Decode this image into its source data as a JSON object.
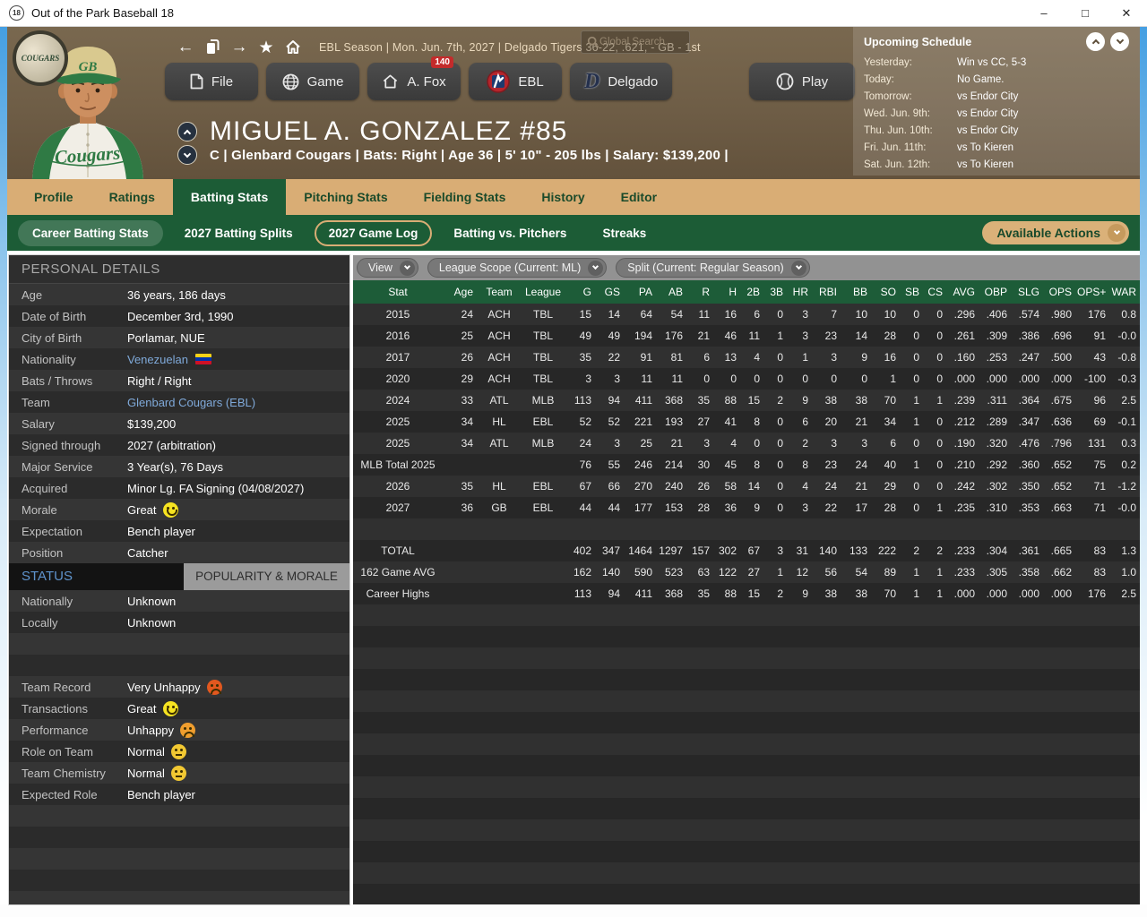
{
  "window": {
    "icon": "18",
    "title": "Out of the Park Baseball 18",
    "controls": {
      "minimize": "–",
      "maximize": "□",
      "close": "✕"
    }
  },
  "topbar": {
    "status_line": "EBL Season  |  Mon. Jun. 7th, 2027  |  Delgado Tigers  36-22, .621, - GB - 1st",
    "search_placeholder": "Global Search..."
  },
  "schedule": {
    "title": "Upcoming Schedule",
    "rows": [
      {
        "label": "Yesterday:",
        "value": "Win vs CC, 5-3"
      },
      {
        "label": "Today:",
        "value": "No Game."
      },
      {
        "label": "Tomorrow:",
        "value": "vs Endor City"
      },
      {
        "label": "Wed. Jun. 9th:",
        "value": "vs Endor City"
      },
      {
        "label": "Thu. Jun. 10th:",
        "value": "vs Endor City"
      },
      {
        "label": "Fri. Jun. 11th:",
        "value": "vs To Kieren"
      },
      {
        "label": "Sat. Jun. 12th:",
        "value": "vs To Kieren"
      }
    ]
  },
  "menu": {
    "file": "File",
    "game": "Game",
    "manager": "A. Fox",
    "manager_badge": "140",
    "league": "EBL",
    "team": "Delgado",
    "play": "Play"
  },
  "player": {
    "name": "MIGUEL A. GONZALEZ  #85",
    "info_line": "C | Glenbard Cougars  |  Bats: Right  |  Age 36  |  5' 10\" - 205 lbs  |  Salary: $139,200  |"
  },
  "tabs": {
    "items": [
      "Profile",
      "Ratings",
      "Batting Stats",
      "Pitching Stats",
      "Fielding Stats",
      "History",
      "Editor"
    ],
    "active": "Batting Stats"
  },
  "subtabs": {
    "items": [
      "Career Batting Stats",
      "2027 Batting Splits",
      "2027 Game Log",
      "Batting vs. Pitchers",
      "Streaks"
    ],
    "selected": "Career Batting Stats",
    "outlined": "2027 Game Log",
    "actions_label": "Available Actions"
  },
  "filters": {
    "view_label": "View",
    "league_scope": "League Scope  (Current: ML)",
    "split": "Split  (Current: Regular Season)"
  },
  "personal_details": {
    "title": "PERSONAL DETAILS",
    "rows": [
      {
        "label": "Age",
        "value": "36 years, 186 days"
      },
      {
        "label": "Date of Birth",
        "value": "December 3rd, 1990"
      },
      {
        "label": "City of Birth",
        "value": "Porlamar, NUE"
      },
      {
        "label": "Nationality",
        "value": "Venezuelan",
        "link": true,
        "flag": "venezuela-flag"
      },
      {
        "label": "Bats / Throws",
        "value": "Right / Right"
      },
      {
        "label": "Team",
        "value": "Glenbard Cougars (EBL)",
        "link": true
      },
      {
        "label": "Salary",
        "value": "$139,200"
      },
      {
        "label": "Signed through",
        "value": "2027 (arbitration)"
      },
      {
        "label": "Major Service",
        "value": "3 Year(s), 76 Days"
      },
      {
        "label": "Acquired",
        "value": "Minor Lg. FA Signing (04/08/2027)"
      },
      {
        "label": "Morale",
        "value": "Great",
        "emoji": "great"
      },
      {
        "label": "Expectation",
        "value": "Bench player"
      },
      {
        "label": "Position",
        "value": "Catcher"
      }
    ]
  },
  "status_panel": {
    "tab_status": "STATUS",
    "tab_popularity": "POPULARITY & MORALE",
    "rows": [
      {
        "label": "Nationally",
        "value": "Unknown"
      },
      {
        "label": "Locally",
        "value": "Unknown"
      },
      {
        "spacer": true
      },
      {
        "spacer": true
      },
      {
        "label": "Team Record",
        "value": "Very Unhappy",
        "emoji": "very-unhappy"
      },
      {
        "label": "Transactions",
        "value": "Great",
        "emoji": "great"
      },
      {
        "label": "Performance",
        "value": "Unhappy",
        "emoji": "unhappy"
      },
      {
        "label": "Role on Team",
        "value": "Normal",
        "emoji": "normal"
      },
      {
        "label": "Team Chemistry",
        "value": "Normal",
        "emoji": "normal"
      },
      {
        "label": "Expected Role",
        "value": "Bench player"
      }
    ]
  },
  "stats_table": {
    "columns": [
      "Stat",
      "Age",
      "Team",
      "League",
      "G",
      "GS",
      "PA",
      "AB",
      "R",
      "H",
      "2B",
      "3B",
      "HR",
      "RBI",
      "BB",
      "SO",
      "SB",
      "CS",
      "AVG",
      "OBP",
      "SLG",
      "OPS",
      "OPS+",
      "WAR"
    ],
    "rows": [
      [
        "2015",
        "24",
        "ACH",
        "TBL",
        "15",
        "14",
        "64",
        "54",
        "11",
        "16",
        "6",
        "0",
        "3",
        "7",
        "10",
        "10",
        "0",
        "0",
        ".296",
        ".406",
        ".574",
        ".980",
        "176",
        "0.8"
      ],
      [
        "2016",
        "25",
        "ACH",
        "TBL",
        "49",
        "49",
        "194",
        "176",
        "21",
        "46",
        "11",
        "1",
        "3",
        "23",
        "14",
        "28",
        "0",
        "0",
        ".261",
        ".309",
        ".386",
        ".696",
        "91",
        "-0.0"
      ],
      [
        "2017",
        "26",
        "ACH",
        "TBL",
        "35",
        "22",
        "91",
        "81",
        "6",
        "13",
        "4",
        "0",
        "1",
        "3",
        "9",
        "16",
        "0",
        "0",
        ".160",
        ".253",
        ".247",
        ".500",
        "43",
        "-0.8"
      ],
      [
        "2020",
        "29",
        "ACH",
        "TBL",
        "3",
        "3",
        "11",
        "11",
        "0",
        "0",
        "0",
        "0",
        "0",
        "0",
        "0",
        "1",
        "0",
        "0",
        ".000",
        ".000",
        ".000",
        ".000",
        "-100",
        "-0.3"
      ],
      [
        "2024",
        "33",
        "ATL",
        "MLB",
        "113",
        "94",
        "411",
        "368",
        "35",
        "88",
        "15",
        "2",
        "9",
        "38",
        "38",
        "70",
        "1",
        "1",
        ".239",
        ".311",
        ".364",
        ".675",
        "96",
        "2.5"
      ],
      [
        "2025",
        "34",
        "HL",
        "EBL",
        "52",
        "52",
        "221",
        "193",
        "27",
        "41",
        "8",
        "0",
        "6",
        "20",
        "21",
        "34",
        "1",
        "0",
        ".212",
        ".289",
        ".347",
        ".636",
        "69",
        "-0.1"
      ],
      [
        "2025",
        "34",
        "ATL",
        "MLB",
        "24",
        "3",
        "25",
        "21",
        "3",
        "4",
        "0",
        "0",
        "2",
        "3",
        "3",
        "6",
        "0",
        "0",
        ".190",
        ".320",
        ".476",
        ".796",
        "131",
        "0.3"
      ],
      [
        "MLB Total 2025",
        "",
        "",
        "",
        "76",
        "55",
        "246",
        "214",
        "30",
        "45",
        "8",
        "0",
        "8",
        "23",
        "24",
        "40",
        "1",
        "0",
        ".210",
        ".292",
        ".360",
        ".652",
        "75",
        "0.2"
      ],
      [
        "2026",
        "35",
        "HL",
        "EBL",
        "67",
        "66",
        "270",
        "240",
        "26",
        "58",
        "14",
        "0",
        "4",
        "24",
        "21",
        "29",
        "0",
        "0",
        ".242",
        ".302",
        ".350",
        ".652",
        "71",
        "-1.2"
      ],
      [
        "2027",
        "36",
        "GB",
        "EBL",
        "44",
        "44",
        "177",
        "153",
        "28",
        "36",
        "9",
        "0",
        "3",
        "22",
        "17",
        "28",
        "0",
        "1",
        ".235",
        ".310",
        ".353",
        ".663",
        "71",
        "-0.0"
      ]
    ],
    "summary_rows": [
      [
        "TOTAL",
        "",
        "",
        "",
        "402",
        "347",
        "1464",
        "1297",
        "157",
        "302",
        "67",
        "3",
        "31",
        "140",
        "133",
        "222",
        "2",
        "2",
        ".233",
        ".304",
        ".361",
        ".665",
        "83",
        "1.3"
      ],
      [
        "162 Game AVG",
        "",
        "",
        "",
        "162",
        "140",
        "590",
        "523",
        "63",
        "122",
        "27",
        "1",
        "12",
        "56",
        "54",
        "89",
        "1",
        "1",
        ".233",
        ".305",
        ".358",
        ".662",
        "83",
        "1.0"
      ],
      [
        "Career Highs",
        "",
        "",
        "",
        "113",
        "94",
        "411",
        "368",
        "35",
        "88",
        "15",
        "2",
        "9",
        "38",
        "38",
        "70",
        "1",
        "1",
        ".000",
        ".000",
        ".000",
        ".000",
        "176",
        "2.5"
      ]
    ]
  },
  "colors": {
    "accent_tan": "#d9ad75",
    "green_dark": "#1c5c36",
    "header_brown": "#6e5d46",
    "panel_dark": "#2e2e2e",
    "link_blue": "#7fa9d9",
    "badge_red": "#c42b2b"
  }
}
